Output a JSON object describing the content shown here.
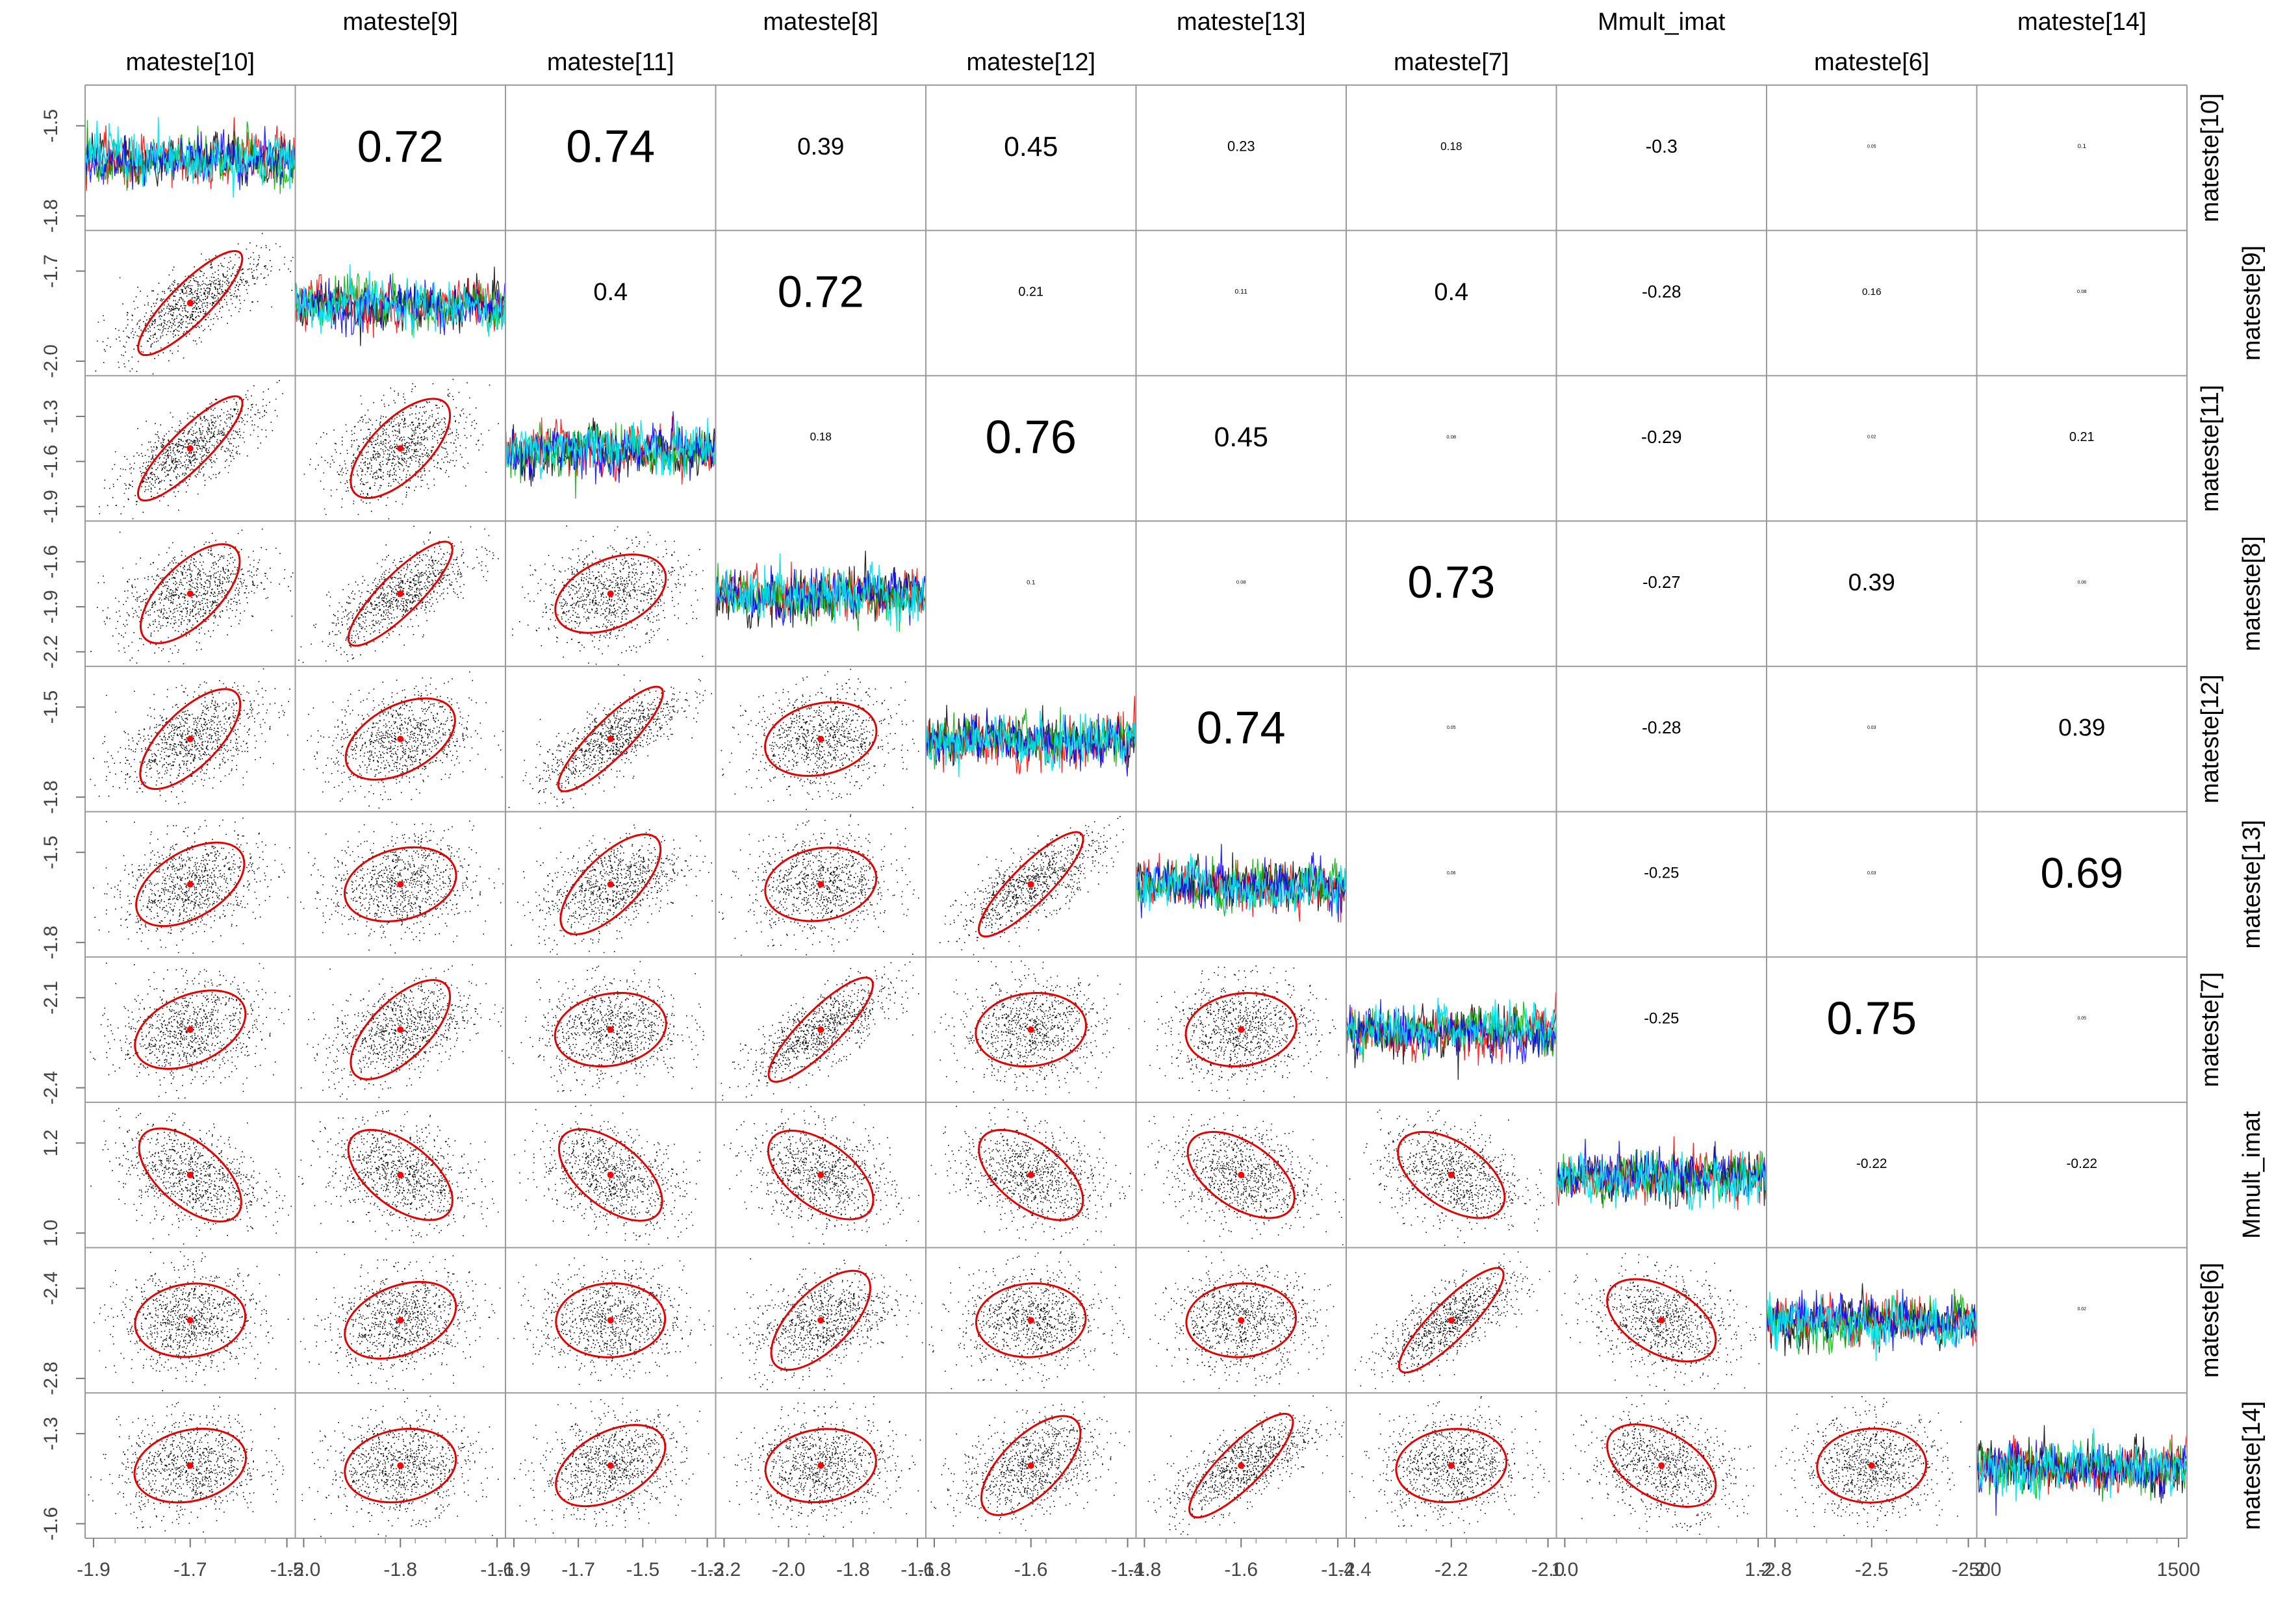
{
  "chart_data": {
    "type": "scatter-matrix",
    "variables": [
      "mateste[10]",
      "mateste[9]",
      "mateste[11]",
      "mateste[8]",
      "mateste[12]",
      "mateste[13]",
      "mateste[7]",
      "Mmult_imat",
      "mateste[6]",
      "mateste[14]"
    ],
    "upper_panel": "correlation coefficients (text size proportional to value)",
    "diagonal_panel": "trace plots (4 chains: black, red, green, blue / cyan)",
    "lower_panel": "pairwise scatter with red mean point and red ellipse",
    "chain_colors": [
      "#000000",
      "#ff0000",
      "#00aa00",
      "#0000ff",
      "#00e5ee"
    ],
    "correlations": [
      [
        "",
        "0.72",
        "0.74",
        "0.39",
        "0.45",
        "0.23",
        "0.18",
        "-0.3",
        "0.05",
        "0.1"
      ],
      [
        "",
        "",
        "0.4",
        "0.72",
        "0.21",
        "0.11",
        "0.4",
        "-0.28",
        "0.16",
        "0.08"
      ],
      [
        "",
        "",
        "",
        "0.18",
        "0.76",
        "0.45",
        "0.08",
        "-0.29",
        "0.02",
        "0.21"
      ],
      [
        "",
        "",
        "",
        "",
        "0.1",
        "0.08",
        "0.73",
        "-0.27",
        "0.39",
        "0.06"
      ],
      [
        "",
        "",
        "",
        "",
        "",
        "0.74",
        "0.05",
        "-0.28",
        "0.03",
        "0.39"
      ],
      [
        "",
        "",
        "",
        "",
        "",
        "",
        "0.06",
        "-0.25",
        "0.03",
        "0.69"
      ],
      [
        "",
        "",
        "",
        "",
        "",
        "",
        "",
        "-0.25",
        "0.75",
        "0.05"
      ],
      [
        "",
        "",
        "",
        "",
        "",
        "",
        "",
        "",
        "-0.22",
        "-0.22"
      ],
      [
        "",
        "",
        "",
        "",
        "",
        "",
        "",
        "",
        "",
        "0.02"
      ],
      [
        "",
        "",
        "",
        "",
        "",
        "",
        "",
        "",
        "",
        ""
      ]
    ],
    "x_ticks": [
      [
        "-1.9",
        "-1.7",
        "-1.5"
      ],
      [
        "-2.0",
        "-1.8",
        "-1.6"
      ],
      [
        "-1.9",
        "-1.7",
        "-1.5",
        "-1.3"
      ],
      [
        "-2.2",
        "-2.0",
        "-1.8",
        "-1.6"
      ],
      [
        "-1.8",
        "-1.6",
        "-1.4"
      ],
      [
        "-1.8",
        "-1.6",
        "-1.4"
      ],
      [
        "-2.4",
        "-2.2",
        "-2.0"
      ],
      [
        "1.0",
        "1.2"
      ],
      [
        "-2.8",
        "-2.5",
        "-2.2"
      ],
      [
        "500",
        "1500"
      ]
    ],
    "y_ticks": [
      [
        "-1.5",
        "-1.8"
      ],
      [
        "-1.7",
        "-2.0"
      ],
      [
        "-1.3",
        "-1.6",
        "-1.9"
      ],
      [
        "-1.6",
        "-1.9",
        "-2.2"
      ],
      [
        "-1.5",
        "-1.8"
      ],
      [
        "-1.5",
        "-1.8"
      ],
      [
        "-2.1",
        "-2.4"
      ],
      [
        "1.2",
        "1.0"
      ],
      [
        "-2.4",
        "-2.8"
      ],
      [
        "-1.3",
        "-1.6"
      ]
    ]
  }
}
